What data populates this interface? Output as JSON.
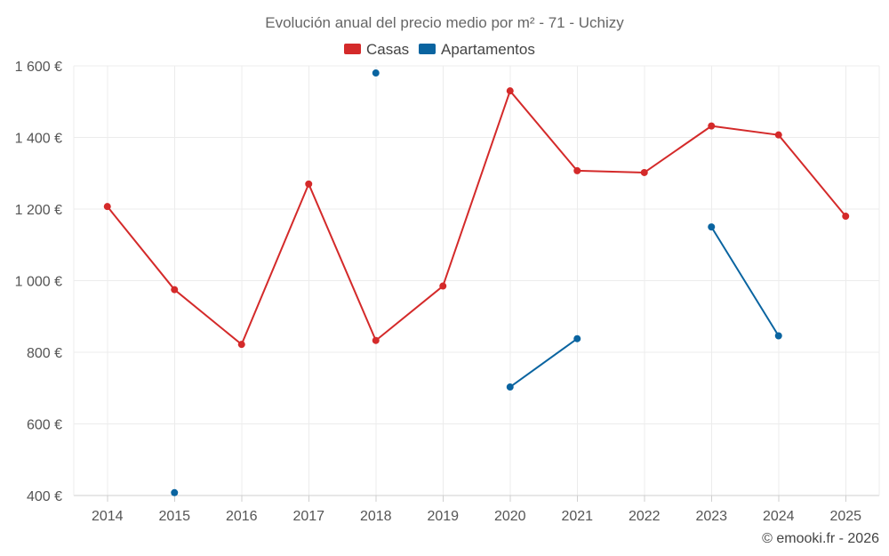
{
  "chart_data": {
    "type": "line",
    "title": "Evolución anual del precio medio por m² - 71 - Uchizy",
    "categories": [
      "2014",
      "2015",
      "2016",
      "2017",
      "2018",
      "2019",
      "2020",
      "2021",
      "2022",
      "2023",
      "2024",
      "2025"
    ],
    "ylim": [
      400,
      1600
    ],
    "yticks": [
      400,
      600,
      800,
      1000,
      1200,
      1400,
      1600
    ],
    "ytick_labels": [
      "400 €",
      "600 €",
      "800 €",
      "1 000 €",
      "1 200 €",
      "1 400 €",
      "1 600 €"
    ],
    "grid": true,
    "legend_position": "top-center",
    "series": [
      {
        "name": "Casas",
        "color": "#d42a2a",
        "values": [
          1207,
          975,
          822,
          1270,
          833,
          985,
          1530,
          1307,
          1302,
          1432,
          1407,
          1180
        ]
      },
      {
        "name": "Apartamentos",
        "color": "#0a64a0",
        "values": [
          null,
          408,
          null,
          null,
          1580,
          null,
          703,
          838,
          null,
          1150,
          846,
          null
        ]
      }
    ],
    "copyright": "© emooki.fr - 2026"
  }
}
